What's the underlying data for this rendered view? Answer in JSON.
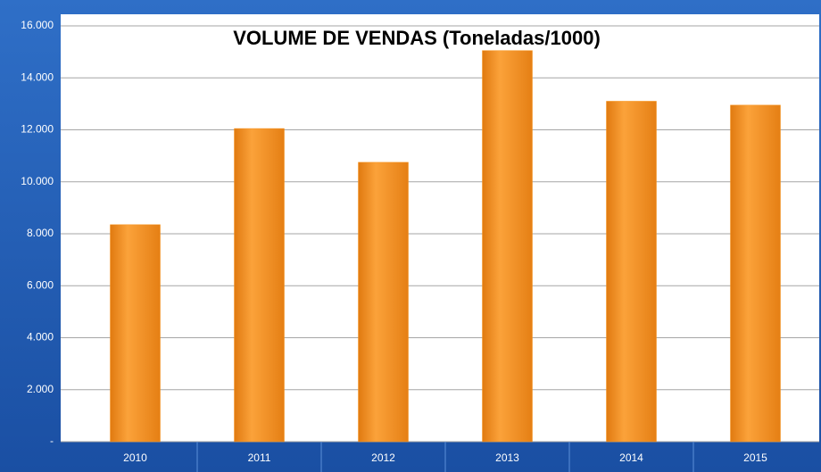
{
  "chart_data": {
    "type": "bar",
    "title": "VOLUME DE VENDAS (Toneladas/1000)",
    "categories": [
      "2010",
      "2011",
      "2012",
      "2013",
      "2014",
      "2015"
    ],
    "values": [
      8350,
      12050,
      10750,
      15050,
      13100,
      12950
    ],
    "color": "#f7941d",
    "ylim": [
      0,
      16000
    ],
    "yticks": [
      {
        "value": 0,
        "label": "-"
      },
      {
        "value": 2000,
        "label": "2.000"
      },
      {
        "value": 4000,
        "label": "4.000"
      },
      {
        "value": 6000,
        "label": "6.000"
      },
      {
        "value": 8000,
        "label": "8.000"
      },
      {
        "value": 10000,
        "label": "10.000"
      },
      {
        "value": 12000,
        "label": "12.000"
      },
      {
        "value": 14000,
        "label": "14.000"
      },
      {
        "value": 16000,
        "label": "16.000"
      }
    ],
    "grid": true
  }
}
